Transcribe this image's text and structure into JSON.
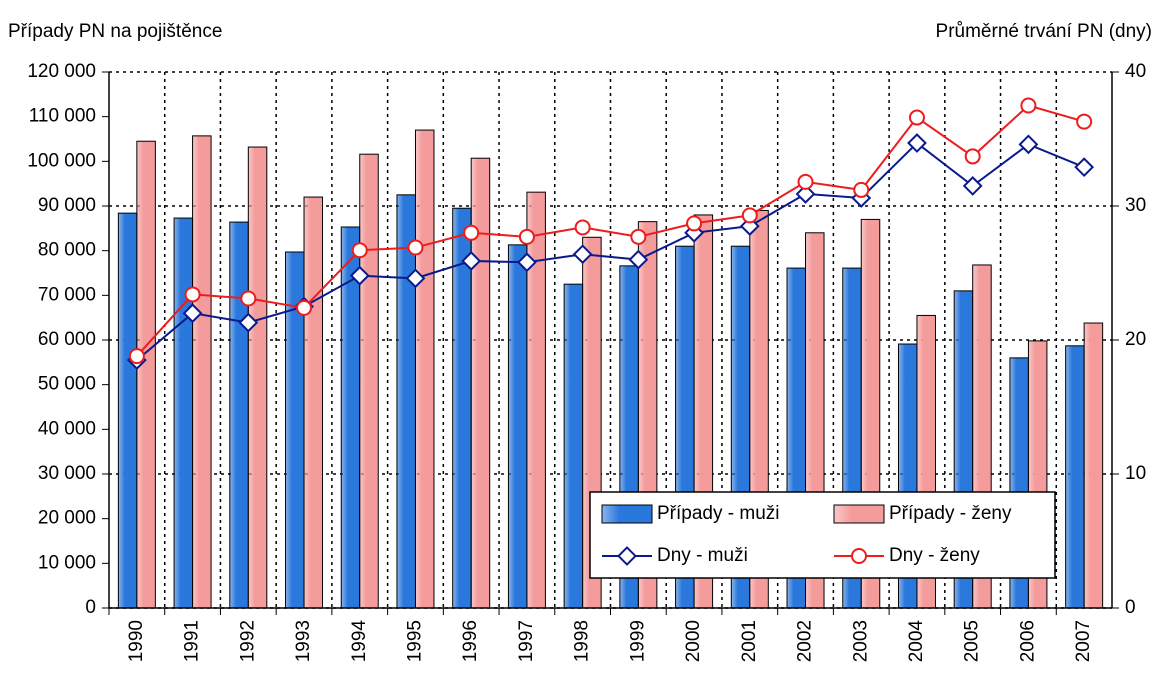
{
  "chart_data": {
    "type": "bar-line",
    "ylabel": "Případy PN na pojištěnce",
    "y2label": "Průměrné trvání PN (dny)",
    "categories": [
      "1990",
      "1991",
      "1992",
      "1993",
      "1994",
      "1995",
      "1996",
      "1997",
      "1998",
      "1999",
      "2000",
      "2001",
      "2002",
      "2003",
      "2004",
      "2005",
      "2006",
      "2007"
    ],
    "series": [
      {
        "name": "Případy - muži",
        "type": "bar",
        "color": "#2a78dc",
        "values": [
          88400,
          87300,
          86400,
          79700,
          85300,
          92500,
          89500,
          81300,
          72500,
          76600,
          81000,
          81000,
          76100,
          76100,
          59100,
          71000,
          56000,
          58700
        ]
      },
      {
        "name": "Případy - ženy",
        "type": "bar",
        "color": "#f49c9c",
        "values": [
          104500,
          105700,
          103200,
          92000,
          101600,
          107000,
          100700,
          93100,
          83000,
          86500,
          88000,
          89000,
          84000,
          87000,
          65500,
          76800,
          59800,
          63800
        ]
      },
      {
        "name": "Dny - muži",
        "type": "line",
        "axis": "y2",
        "color": "#0a1a8c",
        "values": [
          18.5,
          22.0,
          21.3,
          22.5,
          24.8,
          24.6,
          25.9,
          25.8,
          26.4,
          26.0,
          28.0,
          28.5,
          30.9,
          30.6,
          34.7,
          31.5,
          34.6,
          32.9
        ]
      },
      {
        "name": "Dny - ženy",
        "type": "line",
        "axis": "y2",
        "color": "#ee1c1c",
        "values": [
          18.8,
          23.4,
          23.1,
          22.4,
          26.7,
          26.9,
          28.0,
          27.7,
          28.4,
          27.7,
          28.7,
          29.3,
          31.8,
          31.2,
          36.6,
          33.7,
          37.5,
          36.3
        ]
      }
    ],
    "ylim": [
      0,
      120000
    ],
    "yticks": [
      0,
      {
        "value": 10000,
        "label": "10 000"
      },
      {
        "value": 20000,
        "label": "20 000"
      },
      {
        "value": 30000,
        "label": "30 000"
      },
      {
        "value": 40000,
        "label": "40 000"
      },
      {
        "value": 50000,
        "label": "50 000"
      },
      {
        "value": 60000,
        "label": "60 000"
      },
      {
        "value": 70000,
        "label": "70 000"
      },
      {
        "value": 80000,
        "label": "80 000"
      },
      {
        "value": 90000,
        "label": "90 000"
      },
      {
        "value": 100000,
        "label": "100 000"
      },
      {
        "value": 110000,
        "label": "110 000"
      },
      {
        "value": 120000,
        "label": "120 000"
      }
    ],
    "y2lim": [
      0,
      40
    ],
    "y2ticks": [
      0,
      10,
      20,
      30,
      40
    ],
    "grid": true,
    "legend": "lower right"
  }
}
